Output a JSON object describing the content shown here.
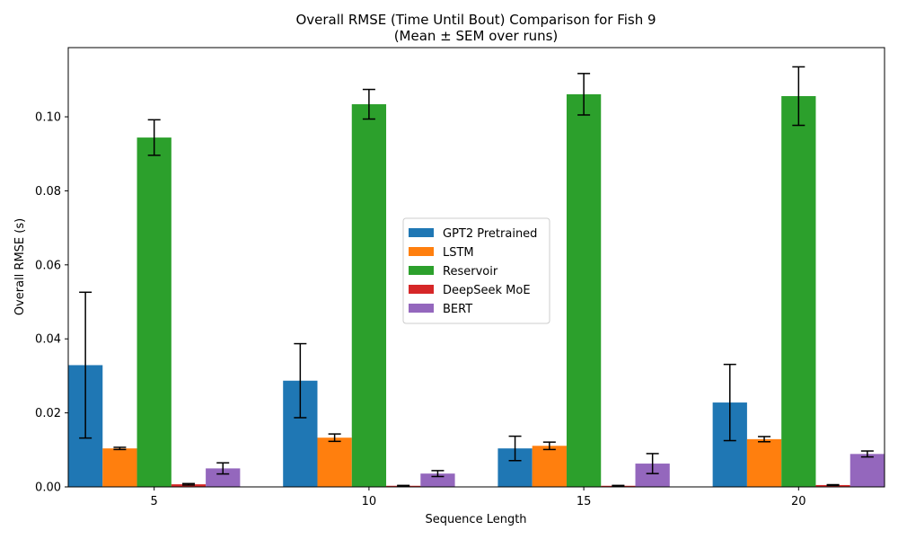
{
  "chart_data": {
    "type": "bar",
    "title": "Overall RMSE (Time Until Bout) Comparison for Fish 9",
    "subtitle": "(Mean ± SEM over runs)",
    "xlabel": "Sequence Length",
    "ylabel": "Overall RMSE (s)",
    "categories": [
      "5",
      "10",
      "15",
      "20"
    ],
    "ylim": [
      0,
      0.1187
    ],
    "yticks": [
      0.0,
      0.02,
      0.04,
      0.06,
      0.08,
      0.1
    ],
    "ytick_labels": [
      "0.00",
      "0.02",
      "0.04",
      "0.06",
      "0.08",
      "0.10"
    ],
    "grid": false,
    "legend_position": "center",
    "series": [
      {
        "name": "GPT2 Pretrained",
        "color": "#1f77b4",
        "values": [
          0.0329,
          0.0287,
          0.0104,
          0.0228
        ],
        "errors": [
          0.0197,
          0.01,
          0.0033,
          0.0103
        ]
      },
      {
        "name": "LSTM",
        "color": "#ff7f0e",
        "values": [
          0.0104,
          0.0133,
          0.0111,
          0.0129
        ],
        "errors": [
          0.0003,
          0.001,
          0.001,
          0.0007
        ]
      },
      {
        "name": "Reservoir",
        "color": "#2ca02c",
        "values": [
          0.0944,
          0.1034,
          0.1061,
          0.1056
        ],
        "errors": [
          0.0048,
          0.004,
          0.0056,
          0.0079
        ]
      },
      {
        "name": "DeepSeek MoE",
        "color": "#d62728",
        "values": [
          0.0007,
          0.0003,
          0.0003,
          0.0005
        ],
        "errors": [
          0.0002,
          0.0001,
          0.0001,
          0.0001
        ]
      },
      {
        "name": "BERT",
        "color": "#9467bd",
        "values": [
          0.005,
          0.0036,
          0.0063,
          0.0089
        ],
        "errors": [
          0.0015,
          0.0008,
          0.0027,
          0.0008
        ]
      }
    ]
  }
}
